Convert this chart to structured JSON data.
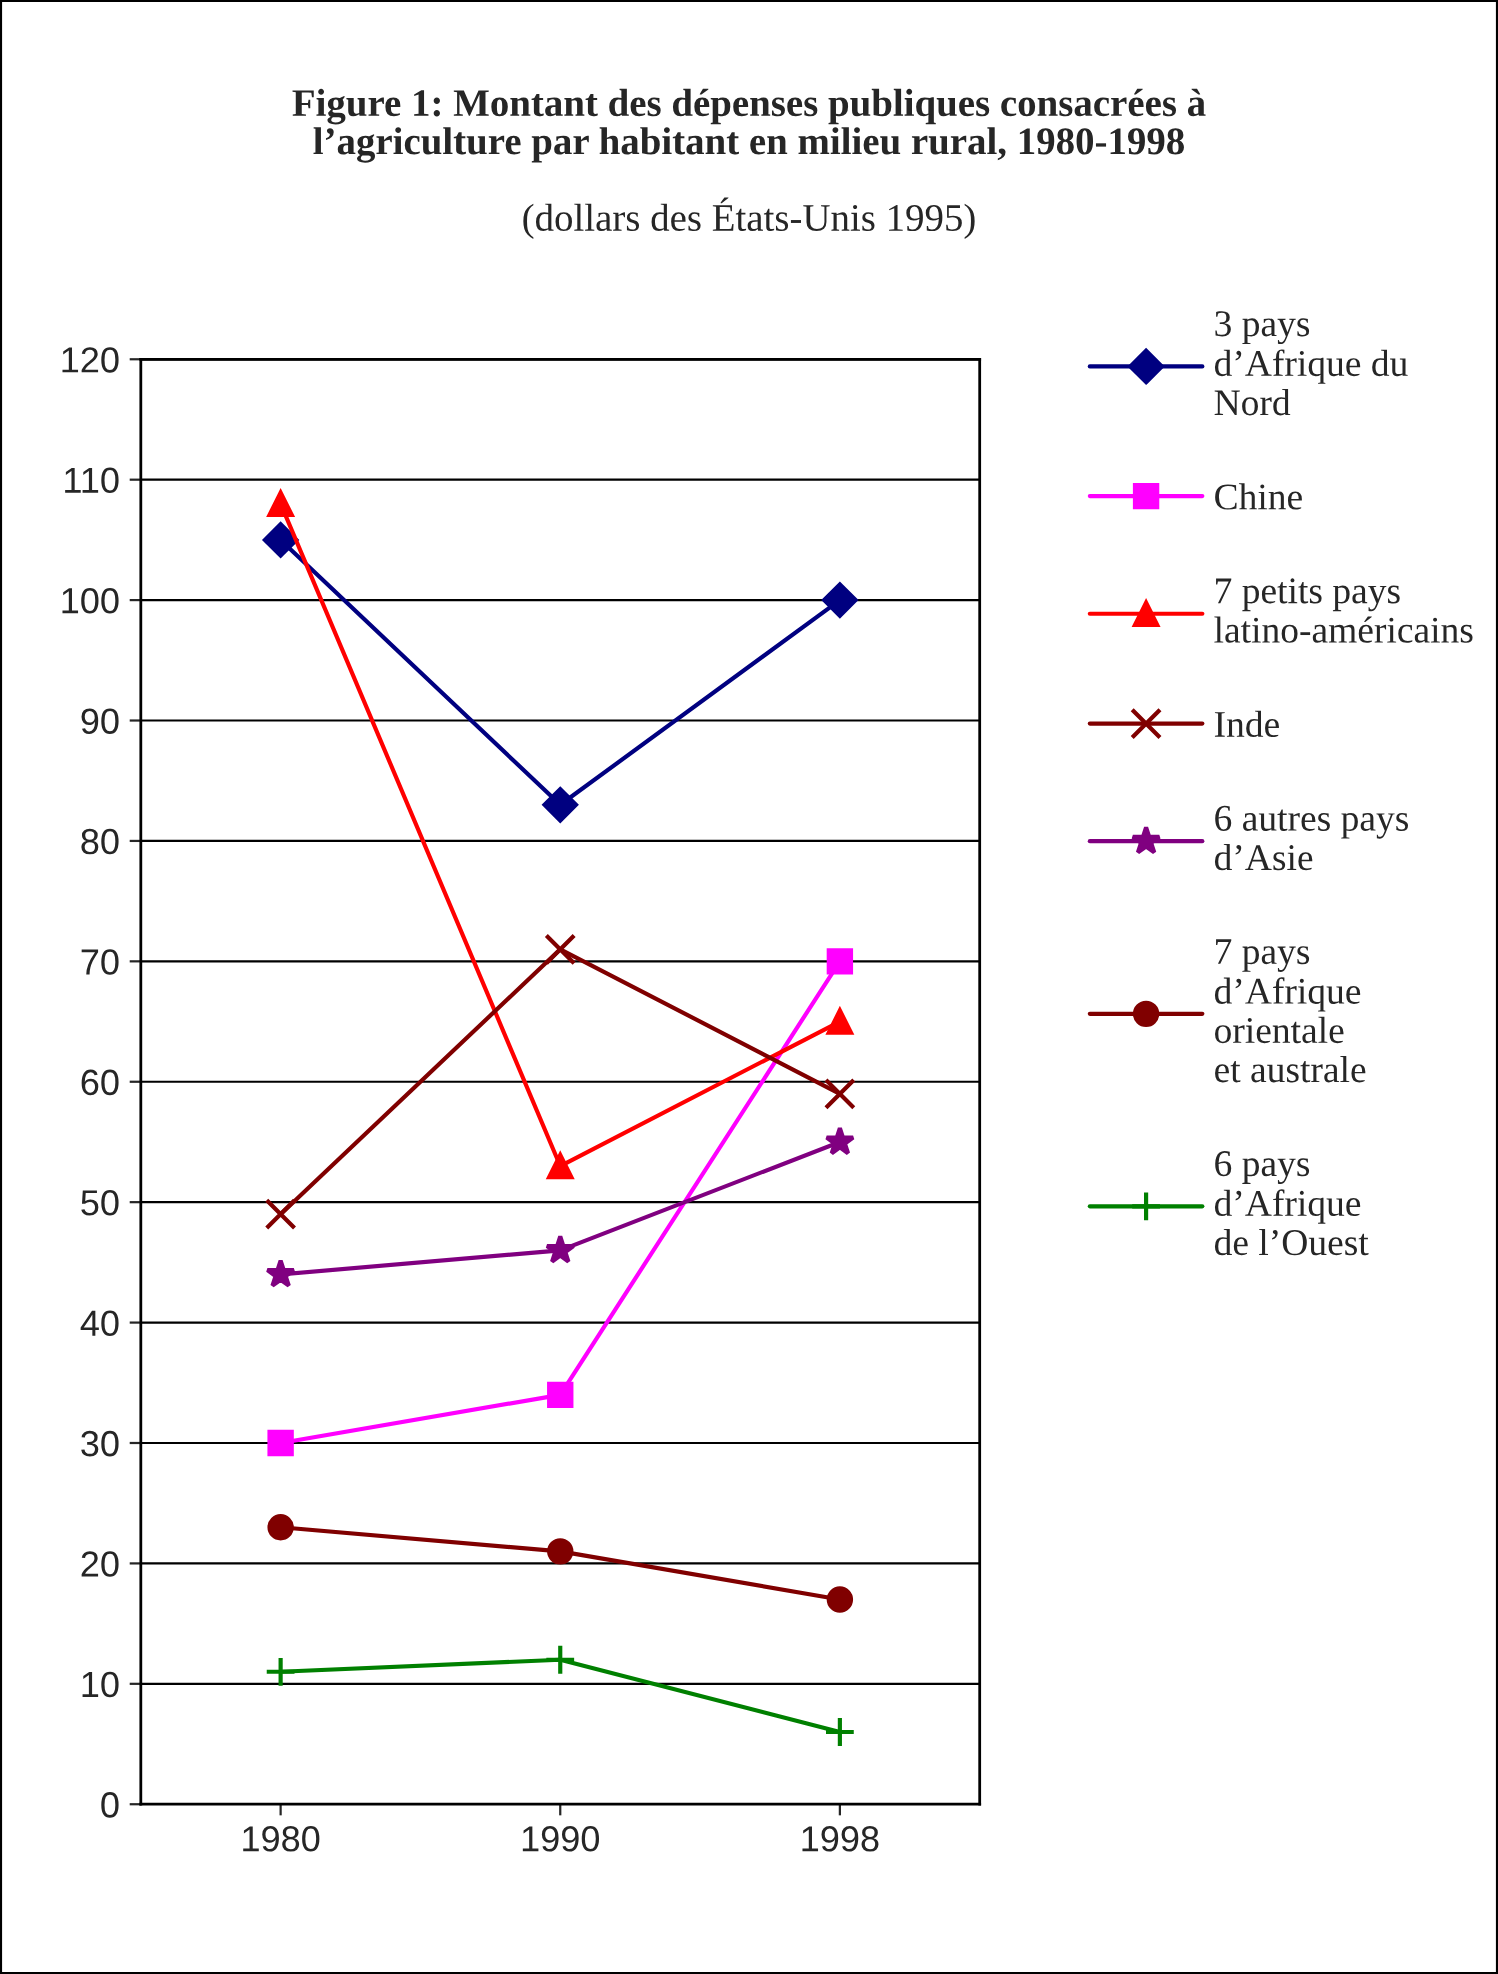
{
  "chart_data": {
    "type": "line",
    "title": "Figure 1: Montant des dépenses publiques consacrées à\nl’agriculture par habitant en milieu rural, 1980-1998",
    "subtitle": "(dollars des États-Unis 1995)",
    "categories": [
      "1980",
      "1990",
      "1998"
    ],
    "series": [
      {
        "name": "3 pays\nd’Afrique du\nNord",
        "color": "#000080",
        "marker": "diamond",
        "values": [
          105,
          83,
          100
        ]
      },
      {
        "name": "Chine",
        "color": "#ff00ff",
        "marker": "square",
        "values": [
          30,
          34,
          70
        ]
      },
      {
        "name": "7 petits pays\nlatino-américains",
        "color": "#ff0000",
        "marker": "triangle",
        "values": [
          108,
          53,
          65
        ]
      },
      {
        "name": "Inde",
        "color": "#800000",
        "marker": "cross",
        "values": [
          49,
          71,
          59
        ]
      },
      {
        "name": "6 autres pays\nd’Asie",
        "color": "#800080",
        "marker": "star",
        "values": [
          44,
          46,
          55
        ]
      },
      {
        "name": "7 pays\nd’Afrique\norientale\net australe",
        "color": "#800000",
        "marker": "circle",
        "values": [
          23,
          21,
          17
        ]
      },
      {
        "name": "6 pays\nd’Afrique\nde l’Ouest",
        "color": "#008000",
        "marker": "plus",
        "values": [
          11,
          12,
          6
        ]
      }
    ],
    "ylim": [
      0,
      120
    ],
    "yticks": [
      0,
      10,
      20,
      30,
      40,
      50,
      60,
      70,
      80,
      90,
      100,
      110,
      120
    ],
    "grid": "y",
    "legend": "right",
    "line_style": "solid"
  }
}
